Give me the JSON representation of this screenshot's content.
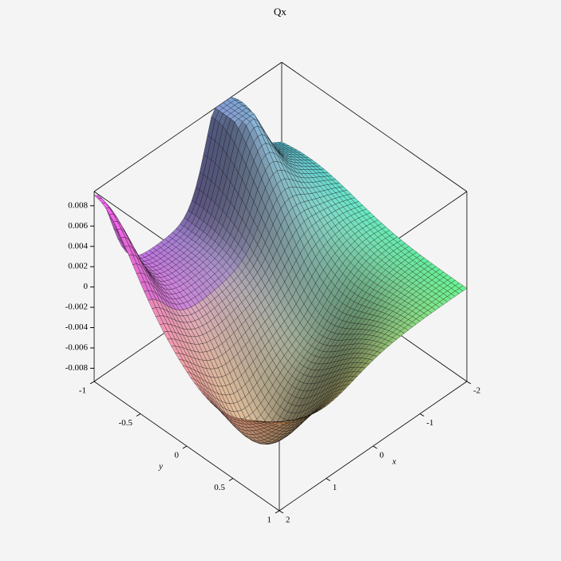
{
  "chart_data": {
    "type": "surface3d",
    "title": "Qx",
    "x_label": "x",
    "y_label": "y",
    "xlim": [
      -2,
      2
    ],
    "ylim": [
      -1,
      1
    ],
    "zlim": [
      -0.0093,
      0.0094
    ],
    "xticks": [
      -2,
      -1,
      0,
      1,
      2
    ],
    "yticks": [
      -1,
      -0.5,
      0,
      0.5,
      1
    ],
    "zticks": [
      -0.008,
      -0.006,
      -0.004,
      -0.002,
      0,
      0.002,
      0.004,
      0.006,
      0.008
    ],
    "axes": "boxed"
  }
}
